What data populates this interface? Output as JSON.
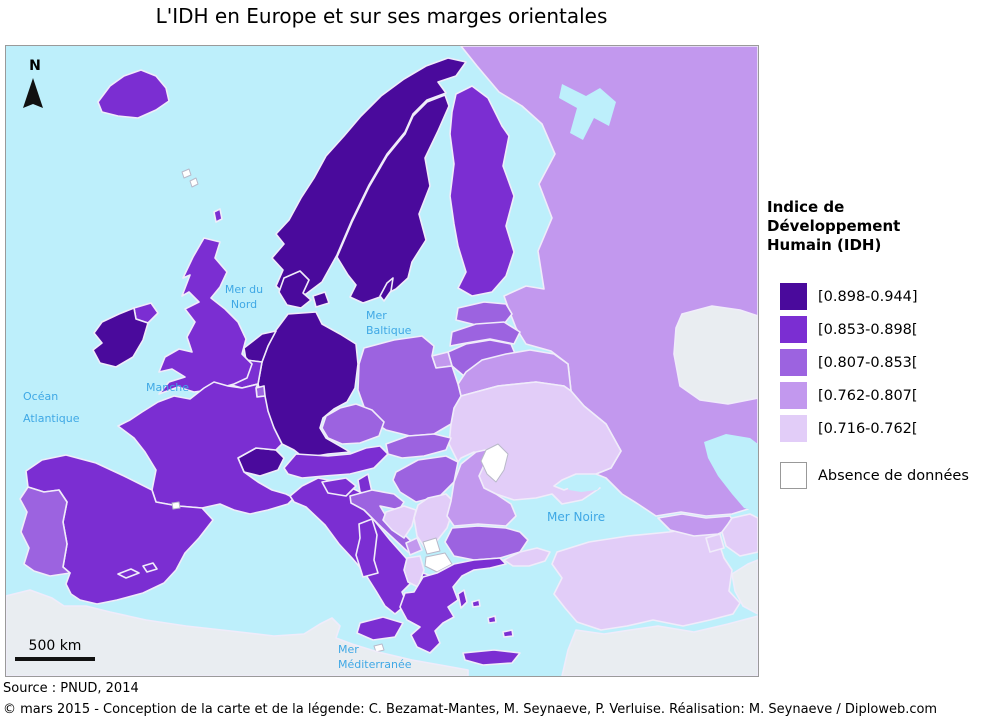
{
  "title": "L'IDH en Europe et sur ses marges orientales",
  "map": {
    "north_label": "N",
    "scale_label": "500 km",
    "sea_labels": {
      "north_sea": [
        "Mer du",
        "Nord"
      ],
      "baltic": [
        "Mer",
        "Baltique"
      ],
      "channel": [
        "Manche"
      ],
      "atlantic": [
        "Océan",
        "Atlantique"
      ],
      "black_sea": [
        "Mer Noire"
      ],
      "mediterranean": [
        "Mer",
        "Méditerranée"
      ]
    },
    "countries": {
      "iceland": "2",
      "norway": "1",
      "sweden": "1",
      "finland": "2",
      "denmark": "1",
      "denmark_islands": "1",
      "gotland": "1",
      "estonia": "3",
      "latvia": "3",
      "lithuania": "3",
      "kaliningrad": "4",
      "russia": "4",
      "belarus": "4",
      "ukraine": "5",
      "moldova": "none",
      "poland": "3",
      "germany": "1",
      "netherlands": "1",
      "belgium": "2",
      "luxembourg": "3",
      "uk": "2",
      "northern_ireland": "2",
      "ireland": "1",
      "shetland": "2",
      "faroe_1": "none",
      "faroe_2": "none",
      "france": "2",
      "corsica": "2",
      "switzerland": "1",
      "austria": "2",
      "czech": "3",
      "slovakia": "3",
      "hungary": "3",
      "spain": "2",
      "portugal": "3",
      "balearic_1": "2",
      "balearic_2": "2",
      "andorra": "none",
      "italy": "2",
      "sicily": "2",
      "sardinia": "2",
      "malta": "none",
      "slovenia": "2",
      "croatia": "3",
      "bosnia": "5",
      "serbia": "5",
      "montenegro": "4",
      "kosovo": "none",
      "macedonia": "none",
      "albania": "5",
      "bulgaria": "3",
      "romania": "4",
      "greece": "2",
      "crete": "2",
      "euboea": "2",
      "aegean_1": "2",
      "aegean_2": "2",
      "aegean_3": "2",
      "turkey_thrace": "5",
      "turkey": "5",
      "cyprus": "3",
      "georgia": "4",
      "armenia": "5",
      "azerbaijan": "5",
      "kazakhstan": "out",
      "iran": "out",
      "syria_iraq": "out",
      "north_africa": "out",
      "white_sea": "sea",
      "azov_sea": "sea",
      "caspian_sea": "sea"
    }
  },
  "legend": {
    "title_lines": [
      "Indice de Développement",
      "Humain (IDH)"
    ],
    "items": [
      {
        "label": "[0.898-0.944]",
        "color": "#4A0A9C"
      },
      {
        "label": "[0.853-0.898[",
        "color": "#7B2ED2"
      },
      {
        "label": "[0.807-0.853[",
        "color": "#9C63E0"
      },
      {
        "label": "[0.762-0.807[",
        "color": "#C298EE"
      },
      {
        "label": "[0.716-0.762[",
        "color": "#E2CDF8"
      },
      {
        "label": "Absence de données",
        "color": "#FFFFFF"
      }
    ]
  },
  "colors": {
    "sea": "#BDEFFB",
    "out_of_scope": "#E9EDF1",
    "no_data": "#FFFFFF",
    "sea_label": "#3FA8E5"
  },
  "footer": {
    "source": "Source : PNUD, 2014",
    "credits": "© mars 2015 - Conception de la carte et de la légende: C. Bezamat-Mantes, M. Seynaeve, P. Verluise. Réalisation: M. Seynaeve / Diploweb.com"
  }
}
